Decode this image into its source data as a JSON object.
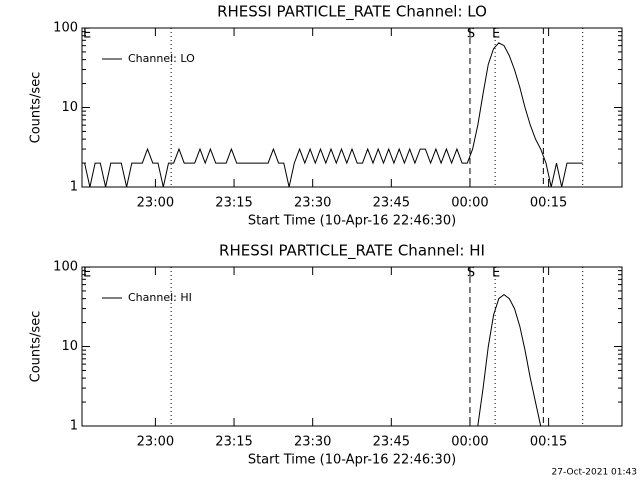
{
  "chart_data": [
    {
      "type": "line",
      "title": "RHESSI PARTICLE_RATE Channel: LO",
      "xlabel": "Start Time (10-Apr-16 22:46:30)",
      "ylabel": "Counts/sec",
      "log_y": true,
      "legend": "upper left",
      "edge_label": "E",
      "xlim": [
        -0.5,
        102.5
      ],
      "ylim": [
        1,
        100
      ],
      "yticks": [
        1,
        10,
        100
      ],
      "xticks": [
        {
          "value": 13.5,
          "label": "23:00"
        },
        {
          "value": 28.5,
          "label": "23:15"
        },
        {
          "value": 43.5,
          "label": "23:30"
        },
        {
          "value": 58.5,
          "label": "23:45"
        },
        {
          "value": 73.5,
          "label": "00:00"
        },
        {
          "value": 88.5,
          "label": "00:15"
        }
      ],
      "vlines": [
        {
          "x": 16.5,
          "style": "dotted"
        },
        {
          "x": 73.5,
          "style": "dashed",
          "label": "S"
        },
        {
          "x": 78.3,
          "style": "dotted",
          "label": "E"
        },
        {
          "x": 87.5,
          "style": "dashed"
        },
        {
          "x": 95,
          "style": "dotted"
        }
      ],
      "series": [
        {
          "name": "Channel: LO",
          "color": "#000000",
          "x": [
            0,
            1,
            2,
            3,
            4,
            5,
            6,
            7,
            8,
            9,
            10,
            11,
            12,
            13,
            14,
            15,
            16,
            17,
            18,
            19,
            20,
            21,
            22,
            23,
            24,
            25,
            26,
            27,
            28,
            29,
            30,
            31,
            32,
            33,
            34,
            35,
            36,
            37,
            38,
            39,
            40,
            41,
            42,
            43,
            44,
            45,
            46,
            47,
            48,
            49,
            50,
            51,
            52,
            53,
            54,
            55,
            56,
            57,
            58,
            59,
            60,
            61,
            62,
            63,
            64,
            65,
            66,
            67,
            68,
            69,
            70,
            71,
            72,
            73,
            74,
            75,
            76,
            77,
            78,
            79,
            80,
            81,
            82,
            83,
            84,
            85,
            86,
            87,
            88,
            89,
            90,
            91,
            92,
            93,
            94,
            95
          ],
          "values": [
            2,
            1,
            2,
            2,
            1,
            2,
            2,
            2,
            1,
            2,
            2,
            2,
            3,
            2,
            2,
            1,
            2,
            2,
            3,
            2,
            2,
            2,
            3,
            2,
            3,
            2,
            2,
            2,
            3,
            2,
            2,
            2,
            2,
            2,
            2,
            2,
            3,
            2,
            2,
            1,
            2,
            3,
            2,
            3,
            2,
            3,
            2,
            3,
            2,
            3,
            2,
            3,
            2,
            2,
            3,
            2,
            3,
            2,
            3,
            2,
            3,
            2,
            3,
            2,
            3,
            3,
            2,
            3,
            2,
            3,
            2,
            3,
            2,
            2,
            3,
            6,
            15,
            35,
            55,
            65,
            60,
            45,
            30,
            18,
            10,
            6,
            4,
            3,
            2,
            1,
            2,
            1,
            2,
            2,
            2,
            2
          ]
        }
      ]
    },
    {
      "type": "line",
      "title": "RHESSI PARTICLE_RATE Channel: HI",
      "xlabel": "Start Time (10-Apr-16 22:46:30)",
      "ylabel": "Counts/sec",
      "log_y": true,
      "legend": "upper left",
      "edge_label": "E",
      "xlim": [
        -0.5,
        102.5
      ],
      "ylim": [
        1,
        100
      ],
      "yticks": [
        1,
        10,
        100
      ],
      "xticks": [
        {
          "value": 13.5,
          "label": "23:00"
        },
        {
          "value": 28.5,
          "label": "23:15"
        },
        {
          "value": 43.5,
          "label": "23:30"
        },
        {
          "value": 58.5,
          "label": "23:45"
        },
        {
          "value": 73.5,
          "label": "00:00"
        },
        {
          "value": 88.5,
          "label": "00:15"
        }
      ],
      "vlines": [
        {
          "x": 16.5,
          "style": "dotted"
        },
        {
          "x": 73.5,
          "style": "dashed",
          "label": "S"
        },
        {
          "x": 78.3,
          "style": "dotted",
          "label": "E"
        },
        {
          "x": 87.5,
          "style": "dashed"
        },
        {
          "x": 95,
          "style": "dotted"
        }
      ],
      "series": [
        {
          "name": "Channel: HI",
          "color": "#000000",
          "x": [
            75,
            76,
            77,
            78,
            79,
            80,
            81,
            82,
            83,
            84,
            85,
            86,
            87
          ],
          "values": [
            1,
            3,
            10,
            25,
            40,
            45,
            40,
            30,
            18,
            9,
            4,
            2,
            1
          ]
        }
      ]
    }
  ],
  "footer": "27-Oct-2021 01:43"
}
